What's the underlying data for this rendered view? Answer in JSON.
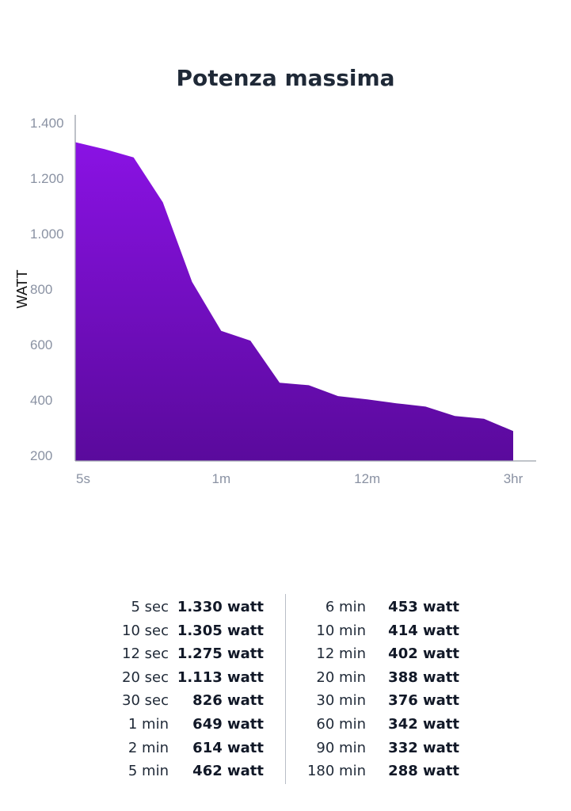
{
  "chart_data": {
    "type": "area",
    "title": "Potenza massima",
    "ylabel": "WATT",
    "xlabel": "",
    "ylim": [
      200,
      1440
    ],
    "y_ticks": [
      {
        "value": 1400,
        "label": "1.400"
      },
      {
        "value": 1200,
        "label": "1.200"
      },
      {
        "value": 1000,
        "label": "1.000"
      },
      {
        "value": 800,
        "label": "800"
      },
      {
        "value": 600,
        "label": "600"
      },
      {
        "value": 400,
        "label": "400"
      },
      {
        "value": 200,
        "label": "200"
      }
    ],
    "x_ticks": [
      "5s",
      "1m",
      "12m",
      "3hr"
    ],
    "x_tick_indices": [
      0,
      5,
      10,
      15
    ],
    "points": [
      1330,
      1305,
      1275,
      1113,
      826,
      649,
      614,
      462,
      453,
      414,
      402,
      388,
      376,
      342,
      332,
      288
    ],
    "fill_top": "#8a12e4",
    "fill_bottom": "#5a0a9c",
    "axis_color": "#9aa0aa"
  },
  "table": {
    "left": [
      {
        "duration": "5 sec",
        "value": "1.330 watt"
      },
      {
        "duration": "10 sec",
        "value": "1.305 watt"
      },
      {
        "duration": "12 sec",
        "value": "1.275 watt"
      },
      {
        "duration": "20 sec",
        "value": "1.113 watt"
      },
      {
        "duration": "30 sec",
        "value": "826 watt"
      },
      {
        "duration": "1 min",
        "value": "649 watt"
      },
      {
        "duration": "2 min",
        "value": "614 watt"
      },
      {
        "duration": "5 min",
        "value": "462 watt"
      }
    ],
    "right": [
      {
        "duration": "6 min",
        "value": "453 watt"
      },
      {
        "duration": "10 min",
        "value": "414 watt"
      },
      {
        "duration": "12 min",
        "value": "402 watt"
      },
      {
        "duration": "20 min",
        "value": "388 watt"
      },
      {
        "duration": "30 min",
        "value": "376 watt"
      },
      {
        "duration": "60 min",
        "value": "342 watt"
      },
      {
        "duration": "90 min",
        "value": "332 watt"
      },
      {
        "duration": "180 min",
        "value": "288 watt"
      }
    ]
  }
}
